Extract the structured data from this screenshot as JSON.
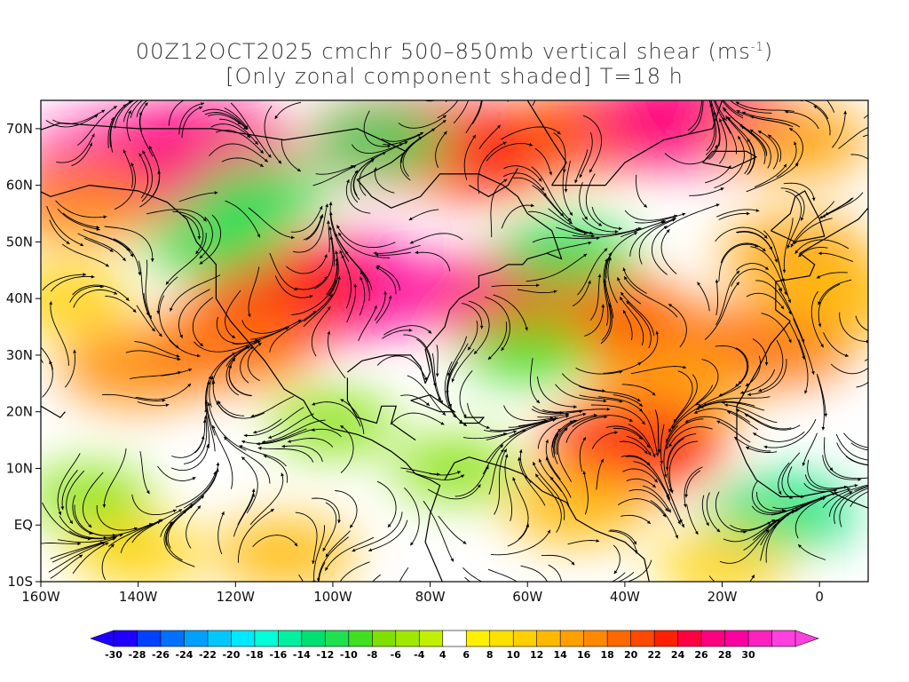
{
  "title": {
    "line1_main": "00Z12OCT2025 cmchr 500–850mb vertical shear (ms",
    "line1_unit_sup": "-1",
    "line1_end": ")",
    "line2": "[Only zonal component shaded] T=18 h"
  },
  "map": {
    "projection": "lat-lon",
    "lon_range": [
      -160,
      10
    ],
    "lat_range": [
      -10,
      75
    ],
    "lat_labels": [
      {
        "lat": 70,
        "text": "70N"
      },
      {
        "lat": 60,
        "text": "60N"
      },
      {
        "lat": 50,
        "text": "50N"
      },
      {
        "lat": 40,
        "text": "40N"
      },
      {
        "lat": 30,
        "text": "30N"
      },
      {
        "lat": 20,
        "text": "20N"
      },
      {
        "lat": 10,
        "text": "10N"
      },
      {
        "lat": 0,
        "text": "EQ"
      },
      {
        "lat": -10,
        "text": "10S"
      }
    ],
    "lon_labels": [
      {
        "lon": -160,
        "text": "160W"
      },
      {
        "lon": -140,
        "text": "140W"
      },
      {
        "lon": -120,
        "text": "120W"
      },
      {
        "lon": -100,
        "text": "100W"
      },
      {
        "lon": -80,
        "text": "80W"
      },
      {
        "lon": -60,
        "text": "60W"
      },
      {
        "lon": -40,
        "text": "40W"
      },
      {
        "lon": -20,
        "text": "20W"
      },
      {
        "lon": 0,
        "text": "0"
      }
    ],
    "shading_features": [
      {
        "lon": -143,
        "lat": 63,
        "value": 28
      },
      {
        "lon": -128,
        "lat": 66,
        "value": 26
      },
      {
        "lon": -152,
        "lat": 57,
        "value": 16
      },
      {
        "lon": -100,
        "lat": 42,
        "value": 28
      },
      {
        "lon": -110,
        "lat": 42,
        "value": 22
      },
      {
        "lon": -62,
        "lat": 40,
        "value": 26
      },
      {
        "lon": -50,
        "lat": 38,
        "value": 22
      },
      {
        "lon": -40,
        "lat": 35,
        "value": 18
      },
      {
        "lon": -85,
        "lat": 68,
        "value": 26
      },
      {
        "lon": -70,
        "lat": 66,
        "value": 22
      },
      {
        "lon": -45,
        "lat": 70,
        "value": 20
      },
      {
        "lon": -25,
        "lat": 72,
        "value": 26
      },
      {
        "lon": -5,
        "lat": 68,
        "value": 14
      },
      {
        "lon": -140,
        "lat": 28,
        "value": 16
      },
      {
        "lon": -120,
        "lat": 32,
        "value": 18
      },
      {
        "lon": -10,
        "lat": 32,
        "value": 18
      },
      {
        "lon": -30,
        "lat": 24,
        "value": 14
      },
      {
        "lon": -38,
        "lat": 14,
        "value": 22
      },
      {
        "lon": -90,
        "lat": 68,
        "value": -12
      },
      {
        "lon": -115,
        "lat": 58,
        "value": -12
      },
      {
        "lon": -125,
        "lat": 50,
        "value": -12
      },
      {
        "lon": -52,
        "lat": 48,
        "value": -12
      },
      {
        "lon": -60,
        "lat": 31,
        "value": -10
      },
      {
        "lon": -100,
        "lat": 18,
        "value": -8
      },
      {
        "lon": -75,
        "lat": 10,
        "value": -8
      },
      {
        "lon": -8,
        "lat": 2,
        "value": -14
      },
      {
        "lon": -150,
        "lat": 5,
        "value": -8
      },
      {
        "lon": -110,
        "lat": -5,
        "value": 12
      },
      {
        "lon": -140,
        "lat": -5,
        "value": 10
      },
      {
        "lon": -20,
        "lat": -7,
        "value": 10
      },
      {
        "lon": -50,
        "lat": 3,
        "value": 12
      },
      {
        "lon": -5,
        "lat": 48,
        "value": 14
      },
      {
        "lon": 5,
        "lat": 40,
        "value": 12
      },
      {
        "lon": -155,
        "lat": 40,
        "value": 10
      }
    ]
  },
  "colorbar": {
    "levels": [
      -30,
      -28,
      -26,
      -24,
      -22,
      -20,
      -18,
      -16,
      -14,
      -12,
      -10,
      -8,
      -6,
      -4,
      4,
      6,
      8,
      10,
      12,
      14,
      16,
      18,
      20,
      22,
      24,
      26,
      28,
      30
    ],
    "labels": [
      "-30",
      "-28",
      "-26",
      "-24",
      "-22",
      "-20",
      "-18",
      "-16",
      "-14",
      "-12",
      "-10",
      "-8",
      "-6",
      "-4",
      "4",
      "6",
      "8",
      "10",
      "12",
      "14",
      "16",
      "18",
      "20",
      "22",
      "24",
      "26",
      "28",
      "30"
    ],
    "colors": [
      "#1f00ff",
      "#0040ff",
      "#0070ff",
      "#00a0ff",
      "#00c8ff",
      "#00e8ff",
      "#00ffd8",
      "#00f0a0",
      "#00e070",
      "#20e050",
      "#40e020",
      "#80e000",
      "#a0e800",
      "#c0f000",
      "#ffffff",
      "#fff000",
      "#ffe000",
      "#ffd000",
      "#ffb800",
      "#ffa000",
      "#ff8800",
      "#ff6800",
      "#ff4800",
      "#ff2000",
      "#ff0040",
      "#ff0080",
      "#ff00a0",
      "#ff20c0",
      "#ff40e0"
    ],
    "under_color": "#1f00ff",
    "over_color": "#ff40e0"
  }
}
